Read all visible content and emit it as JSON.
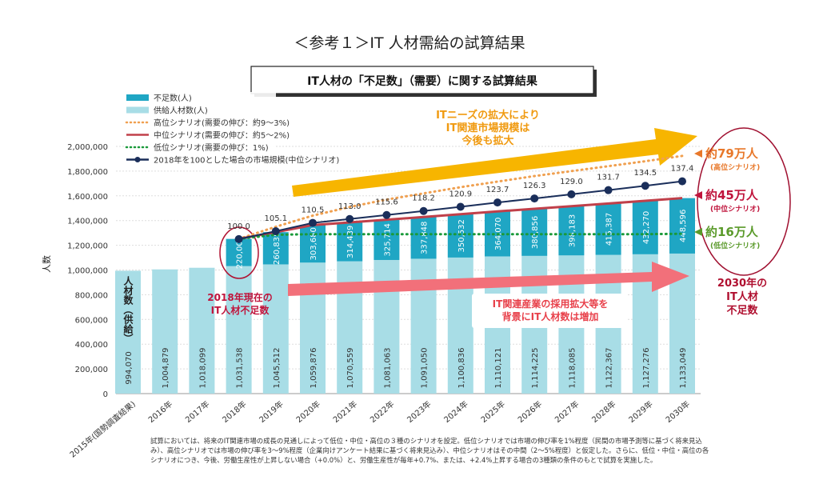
{
  "page_title": "＜参考１＞IT 人材需給の試算結果",
  "chart_data": {
    "type": "bar",
    "title": "IT人材の「不足数」（需要）に関する試算結果",
    "ylabel": "人数",
    "ylim": [
      0,
      2000000
    ],
    "y2lim": [
      0,
      160
    ],
    "yticks": [
      "0",
      "200,000",
      "400,000",
      "600,000",
      "800,000",
      "1,000,000",
      "1,200,000",
      "1,400,000",
      "1,600,000",
      "1,800,000",
      "2,000,000"
    ],
    "grid": true,
    "legend_position": "top-left",
    "categories": [
      "2015年(国勢調査結果)",
      "2016年",
      "2017年",
      "2018年",
      "2019年",
      "2020年",
      "2021年",
      "2022年",
      "2023年",
      "2024年",
      "2025年",
      "2026年",
      "2027年",
      "2028年",
      "2029年",
      "2030年"
    ],
    "series": [
      {
        "name": "不足数(人)",
        "kind": "stacked-bar",
        "color": "#1fa6c4",
        "values": [
          null,
          null,
          null,
          220000,
          260835,
          303680,
          314439,
          325714,
          337848,
          350532,
          364070,
          380856,
          398183,
          415387,
          432270,
          448596
        ],
        "labels": [
          "",
          "",
          "",
          "220,000",
          "260,835",
          "303,680",
          "314,439",
          "325,714",
          "337,848",
          "350,532",
          "364,070",
          "380,856",
          "398,183",
          "415,387",
          "432,270",
          "448,596"
        ]
      },
      {
        "name": "供給人材数(人)",
        "kind": "bar",
        "color": "#a8dde6",
        "values": [
          994070,
          1004879,
          1018099,
          1031538,
          1045512,
          1059876,
          1070559,
          1081063,
          1091050,
          1100836,
          1110121,
          1114225,
          1118085,
          1122367,
          1127276,
          1133049
        ],
        "labels": [
          "994,070",
          "1,004,879",
          "1,018,099",
          "1,031,538",
          "1,045,512",
          "1,059,876",
          "1,070,559",
          "1,081,063",
          "1,091,050",
          "1,100,836",
          "1,110,121",
          "1,114,225",
          "1,118,085",
          "1,122,367",
          "1,127,276",
          "1,133,049"
        ]
      },
      {
        "name": "高位シナリオ(需要の伸び：約9～3%)",
        "kind": "line-dotted",
        "color": "#f0a050",
        "values": [
          null,
          null,
          null,
          1251538,
          1350000,
          1440000,
          1510000,
          1570000,
          1620000,
          1670000,
          1715000,
          1760000,
          1800000,
          1840000,
          1880000,
          1923000
        ]
      },
      {
        "name": "中位シナリオ(需要の伸び：約5～2%)",
        "kind": "line",
        "color": "#c0404a",
        "values": [
          null,
          null,
          null,
          1251538,
          1306347,
          1363556,
          1384998,
          1406777,
          1428898,
          1451368,
          1474191,
          1495081,
          1516268,
          1537754,
          1559546,
          1581645
        ]
      },
      {
        "name": "低位シナリオ(需要の伸び：1%)",
        "kind": "line-dotted",
        "color": "#1a9a3a",
        "values": [
          null,
          null,
          null,
          1251538,
          1285000,
          1290000,
          1290000,
          1290000,
          1290000,
          1290000,
          1290000,
          1290000,
          1290000,
          1290000,
          1290000,
          1293000
        ]
      },
      {
        "name": "2018年を100とした場合の市場規模(中位シナリオ)",
        "kind": "line-marker",
        "axis": "right",
        "color": "#1a2e5a",
        "values": [
          null,
          null,
          null,
          100.0,
          105.1,
          110.5,
          113.0,
          115.6,
          118.2,
          120.9,
          123.7,
          126.3,
          129.0,
          131.7,
          134.5,
          137.4
        ],
        "labels": [
          "",
          "",
          "",
          "100.0",
          "105.1",
          "110.5",
          "113.0",
          "115.6",
          "118.2",
          "120.9",
          "123.7",
          "126.3",
          "129.0",
          "131.7",
          "134.5",
          "137.4"
        ]
      }
    ],
    "annotations": {
      "supply_axis_label": "人材数（供給）",
      "arrow_top_text": [
        "ITニーズの拡大により",
        "IT関連市場規模は",
        "今後も拡大"
      ],
      "arrow_bottom_text": [
        "IT関連産業の採用拡大等を",
        "背景にIT人材数は増加"
      ],
      "shortage_2018": [
        "2018年現在の",
        "IT人材不足数"
      ],
      "high": {
        "value": "約79万人",
        "scenario": "(高位シナリオ)",
        "color": "#e8782a"
      },
      "mid": {
        "value": "約45万人",
        "scenario": "(中位シナリオ)",
        "color": "#c0143c"
      },
      "low": {
        "value": "約16万人",
        "scenario": "(低位シナリオ)",
        "color": "#5a9a2a"
      },
      "shortage_2030": [
        "2030年の",
        "IT人材",
        "不足数"
      ]
    }
  },
  "footnote": "試算においては、将来のIT関連市場の成長の見通しによって低位・中位・高位の３種のシナリオを設定。低位シナリオでは市場の伸び率を1%程度（民間の市場予測等に基づく将来見込み）、高位シナリオでは市場の伸び率を3～9%程度（企業向けアンケート結果に基づく将来見込み）、中位シナリオはその中間（2～5%程度）と仮定した。さらに、低位・中位・高位の各シナリオにつき、今後、労働生産性が上昇しない場合（+0.0%）と、労働生産性が毎年+0.7%、または、+2.4%上昇する場合の3種類の条件のもとで試算を実施した。"
}
